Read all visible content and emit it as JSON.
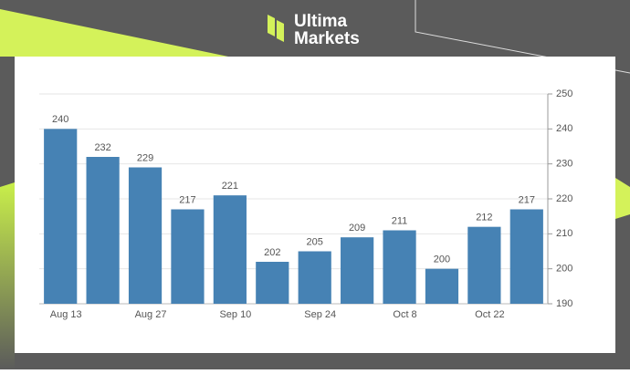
{
  "header": {
    "brand_line_1": "Ultima",
    "brand_line_2": "Markets"
  },
  "chart_data": {
    "type": "bar",
    "categories": [
      "Aug 13",
      null,
      "Aug 27",
      null,
      "Sep 10",
      null,
      "Sep 24",
      null,
      "Oct 8",
      null,
      "Oct 22",
      null
    ],
    "values": [
      240,
      232,
      229,
      217,
      221,
      202,
      205,
      209,
      211,
      200,
      212,
      217
    ],
    "color": "#4682b4",
    "ylim": [
      190,
      250
    ],
    "yticks": [
      190,
      200,
      210,
      220,
      230,
      240,
      250
    ],
    "grid": true,
    "y_axis_side": "right"
  }
}
